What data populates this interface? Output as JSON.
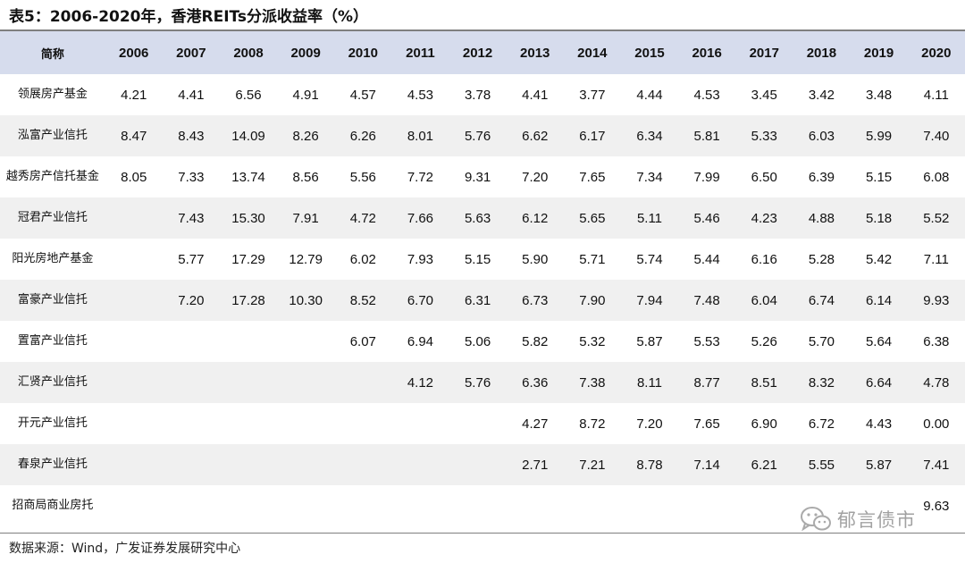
{
  "title": "表5：2006-2020年，香港REITs分派收益率（%）",
  "table": {
    "header_name": "简称",
    "years": [
      "2006",
      "2007",
      "2008",
      "2009",
      "2010",
      "2011",
      "2012",
      "2013",
      "2014",
      "2015",
      "2016",
      "2017",
      "2018",
      "2019",
      "2020"
    ],
    "rows": [
      {
        "name": "领展房产基金",
        "values": [
          "4.21",
          "4.41",
          "6.56",
          "4.91",
          "4.57",
          "4.53",
          "3.78",
          "4.41",
          "3.77",
          "4.44",
          "4.53",
          "3.45",
          "3.42",
          "3.48",
          "4.11"
        ]
      },
      {
        "name": "泓富产业信托",
        "values": [
          "8.47",
          "8.43",
          "14.09",
          "8.26",
          "6.26",
          "8.01",
          "5.76",
          "6.62",
          "6.17",
          "6.34",
          "5.81",
          "5.33",
          "6.03",
          "5.99",
          "7.40"
        ]
      },
      {
        "name": "越秀房产信托基金",
        "values": [
          "8.05",
          "7.33",
          "13.74",
          "8.56",
          "5.56",
          "7.72",
          "9.31",
          "7.20",
          "7.65",
          "7.34",
          "7.99",
          "6.50",
          "6.39",
          "5.15",
          "6.08"
        ]
      },
      {
        "name": "冠君产业信托",
        "values": [
          "",
          "7.43",
          "15.30",
          "7.91",
          "4.72",
          "7.66",
          "5.63",
          "6.12",
          "5.65",
          "5.11",
          "5.46",
          "4.23",
          "4.88",
          "5.18",
          "5.52"
        ]
      },
      {
        "name": "阳光房地产基金",
        "values": [
          "",
          "5.77",
          "17.29",
          "12.79",
          "6.02",
          "7.93",
          "5.15",
          "5.90",
          "5.71",
          "5.74",
          "5.44",
          "6.16",
          "5.28",
          "5.42",
          "7.11"
        ]
      },
      {
        "name": "富豪产业信托",
        "values": [
          "",
          "7.20",
          "17.28",
          "10.30",
          "8.52",
          "6.70",
          "6.31",
          "6.73",
          "7.90",
          "7.94",
          "7.48",
          "6.04",
          "6.74",
          "6.14",
          "9.93"
        ]
      },
      {
        "name": "置富产业信托",
        "values": [
          "",
          "",
          "",
          "",
          "6.07",
          "6.94",
          "5.06",
          "5.82",
          "5.32",
          "5.87",
          "5.53",
          "5.26",
          "5.70",
          "5.64",
          "6.38"
        ]
      },
      {
        "name": "汇贤产业信托",
        "values": [
          "",
          "",
          "",
          "",
          "",
          "4.12",
          "5.76",
          "6.36",
          "7.38",
          "8.11",
          "8.77",
          "8.51",
          "8.32",
          "6.64",
          "4.78"
        ]
      },
      {
        "name": "开元产业信托",
        "values": [
          "",
          "",
          "",
          "",
          "",
          "",
          "",
          "4.27",
          "8.72",
          "7.20",
          "7.65",
          "6.90",
          "6.72",
          "4.43",
          "0.00"
        ]
      },
      {
        "name": "春泉产业信托",
        "values": [
          "",
          "",
          "",
          "",
          "",
          "",
          "",
          "2.71",
          "7.21",
          "8.78",
          "7.14",
          "6.21",
          "5.55",
          "5.87",
          "7.41"
        ]
      },
      {
        "name": "招商局商业房托",
        "values": [
          "",
          "",
          "",
          "",
          "",
          "",
          "",
          "",
          "",
          "",
          "",
          "",
          "",
          "",
          "9.63"
        ]
      }
    ]
  },
  "source": "数据来源：Wind，广发证券发展研究中心",
  "watermark": "郁言债市",
  "colors": {
    "header_bg": "#d6dced",
    "stripe_bg": "#f0f0f0",
    "rule": "#7f7f7f"
  }
}
